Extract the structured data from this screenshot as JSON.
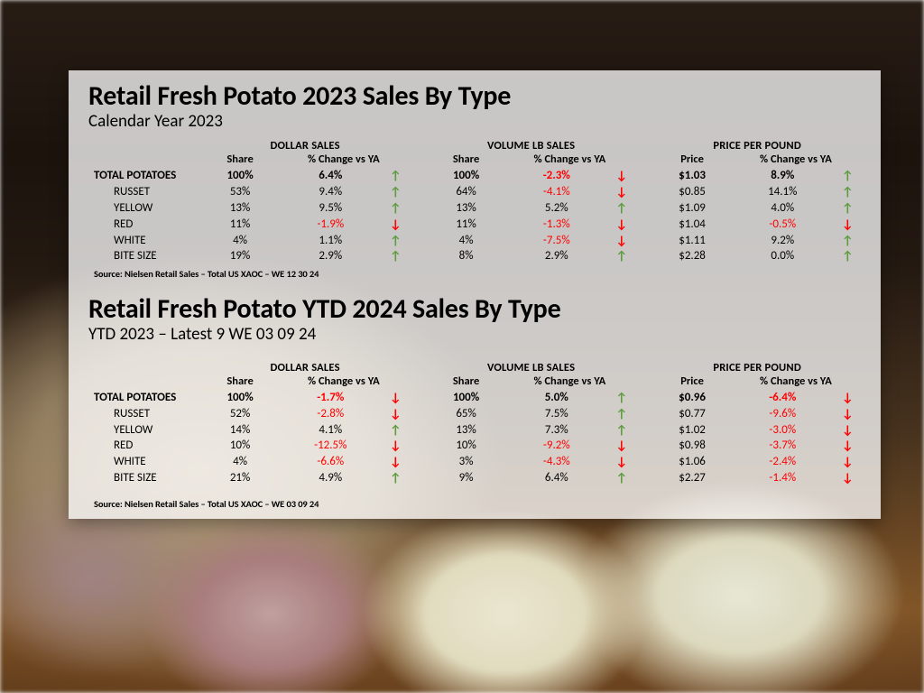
{
  "colors": {
    "negative": "#ff0000",
    "positive_arrow": "#5b9b3e",
    "panel_bg": "rgba(255,255,255,0.76)"
  },
  "column_group_headers": [
    "DOLLAR SALES",
    "VOLUME LB SALES",
    "PRICE PER POUND"
  ],
  "sub_headers_share": "Share",
  "sub_headers_price": "Price",
  "sub_headers_change": "% Change vs YA",
  "tables": [
    {
      "title": "Retail Fresh Potato 2023 Sales By Type",
      "subtitle": "Calendar Year 2023",
      "source": "Source: Nielsen Retail Sales – Total US XAOC –  WE 12 30 24",
      "rows": [
        {
          "label": "TOTAL POTATOES",
          "total": true,
          "dollar_share": "100%",
          "dollar_chg": "6.4%",
          "dollar_dir": "up",
          "vol_share": "100%",
          "vol_chg": "-2.3%",
          "vol_dir": "down",
          "price": "$1.03",
          "price_chg": "8.9%",
          "price_dir": "up"
        },
        {
          "label": "RUSSET",
          "dollar_share": "53%",
          "dollar_chg": "9.4%",
          "dollar_dir": "up",
          "vol_share": "64%",
          "vol_chg": "-4.1%",
          "vol_dir": "down",
          "price": "$0.85",
          "price_chg": "14.1%",
          "price_dir": "up"
        },
        {
          "label": "YELLOW",
          "dollar_share": "13%",
          "dollar_chg": "9.5%",
          "dollar_dir": "up",
          "vol_share": "13%",
          "vol_chg": "5.2%",
          "vol_dir": "up",
          "price": "$1.09",
          "price_chg": "4.0%",
          "price_dir": "up"
        },
        {
          "label": "RED",
          "dollar_share": "11%",
          "dollar_chg": "-1.9%",
          "dollar_dir": "down",
          "vol_share": "11%",
          "vol_chg": "-1.3%",
          "vol_dir": "down",
          "price": "$1.04",
          "price_chg": "-0.5%",
          "price_dir": "down"
        },
        {
          "label": "WHITE",
          "dollar_share": "4%",
          "dollar_chg": "1.1%",
          "dollar_dir": "up",
          "vol_share": "4%",
          "vol_chg": "-7.5%",
          "vol_dir": "down",
          "price": "$1.11",
          "price_chg": "9.2%",
          "price_dir": "up"
        },
        {
          "label": "BITE SIZE",
          "dollar_share": "19%",
          "dollar_chg": "2.9%",
          "dollar_dir": "up",
          "vol_share": "8%",
          "vol_chg": "2.9%",
          "vol_dir": "up",
          "price": "$2.28",
          "price_chg": "0.0%",
          "price_dir": "up"
        }
      ]
    },
    {
      "title": "Retail Fresh Potato YTD 2024 Sales By Type",
      "subtitle": "YTD 2023 – Latest 9 WE 03 09 24",
      "source": "Source: Nielsen Retail Sales – Total US XAOC –  WE 03 09 24",
      "rows": [
        {
          "label": "TOTAL POTATOES",
          "total": true,
          "dollar_share": "100%",
          "dollar_chg": "-1.7%",
          "dollar_dir": "down",
          "vol_share": "100%",
          "vol_chg": "5.0%",
          "vol_dir": "up",
          "price": "$0.96",
          "price_chg": "-6.4%",
          "price_dir": "down"
        },
        {
          "label": "RUSSET",
          "dollar_share": "52%",
          "dollar_chg": "-2.8%",
          "dollar_dir": "down",
          "vol_share": "65%",
          "vol_chg": "7.5%",
          "vol_dir": "up",
          "price": "$0.77",
          "price_chg": "-9.6%",
          "price_dir": "down"
        },
        {
          "label": "YELLOW",
          "dollar_share": "14%",
          "dollar_chg": "4.1%",
          "dollar_dir": "up",
          "vol_share": "13%",
          "vol_chg": "7.3%",
          "vol_dir": "up",
          "price": "$1.02",
          "price_chg": "-3.0%",
          "price_dir": "down"
        },
        {
          "label": "RED",
          "dollar_share": "10%",
          "dollar_chg": "-12.5%",
          "dollar_dir": "down",
          "vol_share": "10%",
          "vol_chg": "-9.2%",
          "vol_dir": "down",
          "price": "$0.98",
          "price_chg": "-3.7%",
          "price_dir": "down"
        },
        {
          "label": "WHITE",
          "dollar_share": "4%",
          "dollar_chg": "-6.6%",
          "dollar_dir": "down",
          "vol_share": "3%",
          "vol_chg": "-4.3%",
          "vol_dir": "down",
          "price": "$1.06",
          "price_chg": "-2.4%",
          "price_dir": "down"
        },
        {
          "label": "BITE SIZE",
          "dollar_share": "21%",
          "dollar_chg": "4.9%",
          "dollar_dir": "up",
          "vol_share": "9%",
          "vol_chg": "6.4%",
          "vol_dir": "up",
          "price": "$2.27",
          "price_chg": "-1.4%",
          "price_dir": "down"
        }
      ]
    }
  ]
}
